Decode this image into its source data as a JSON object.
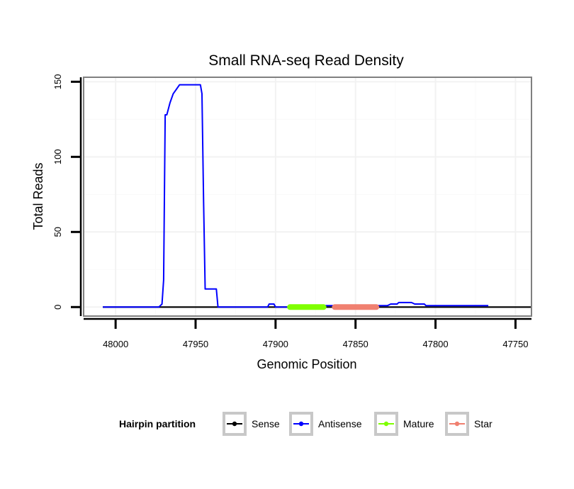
{
  "chart_data": {
    "type": "line",
    "title": "Small RNA-seq Read Density",
    "xlabel": "Genomic Position",
    "ylabel": "Total Reads",
    "xlim": [
      48020,
      47740
    ],
    "x_reversed": true,
    "ylim": [
      -6,
      153
    ],
    "x_ticks": [
      48000,
      47950,
      47900,
      47850,
      47800,
      47750
    ],
    "x_tick_labels": [
      "48000",
      "47950",
      "47900",
      "47850",
      "47800",
      "47750"
    ],
    "y_ticks": [
      0,
      50,
      100,
      150
    ],
    "y_tick_labels": [
      "0",
      "50",
      "100",
      "150"
    ],
    "grid": true,
    "legend": {
      "title": "Hairpin partition",
      "position": "bottom",
      "entries": [
        {
          "name": "Sense",
          "color": "#000000"
        },
        {
          "name": "Antisense",
          "color": "#0000ff"
        },
        {
          "name": "Mature",
          "color": "#7fff00"
        },
        {
          "name": "Star",
          "color": "#f08070"
        }
      ]
    },
    "series": [
      {
        "name": "Sense",
        "color": "#000000",
        "x": [
          48008,
          47740
        ],
        "y": [
          0,
          0
        ]
      },
      {
        "name": "Antisense",
        "color": "#0000ff",
        "x": [
          48008,
          47973,
          47971,
          47970,
          47969,
          47968,
          47966,
          47964,
          47962,
          47960,
          47955,
          47947,
          47946,
          47945,
          47944,
          47937,
          47936,
          47905,
          47904,
          47901,
          47900,
          47870,
          47869,
          47830,
          47828,
          47824,
          47823,
          47815,
          47813,
          47807,
          47806,
          47767
        ],
        "y": [
          0,
          0,
          2,
          18,
          128,
          128,
          136,
          142,
          145,
          148,
          148,
          148,
          142,
          70,
          12,
          12,
          0,
          0,
          2,
          2,
          0,
          0,
          1,
          1,
          2,
          2,
          3,
          3,
          2,
          2,
          1,
          1
        ]
      },
      {
        "name": "Mature",
        "color": "#7fff00",
        "x": [
          47891,
          47870
        ],
        "y": [
          0,
          0
        ]
      },
      {
        "name": "Star",
        "color": "#f08070",
        "x": [
          47863,
          47837
        ],
        "y": [
          0,
          0
        ]
      }
    ]
  }
}
